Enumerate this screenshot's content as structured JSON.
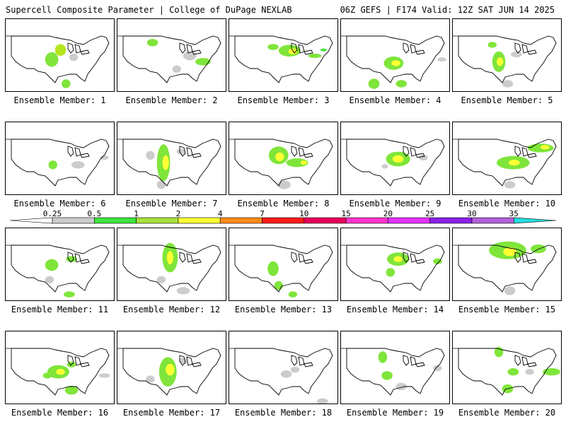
{
  "header": {
    "title": "Supercell Composite Parameter | College of DuPage NEXLAB",
    "run_info": "06Z GEFS | F174 Valid: 12Z SAT JUN 14 2025"
  },
  "panels": [
    {
      "label": "Ensemble Member: 1",
      "blobs": [
        [
          0.42,
          0.55,
          0.06,
          0.1,
          "#7fe53a"
        ],
        [
          0.5,
          0.42,
          0.05,
          0.08,
          "#b5e61d"
        ],
        [
          0.62,
          0.52,
          0.04,
          0.05,
          "#cccccc"
        ],
        [
          0.55,
          0.88,
          0.04,
          0.06,
          "#7fe53a"
        ]
      ]
    },
    {
      "label": "Ensemble Member: 2",
      "blobs": [
        [
          0.32,
          0.32,
          0.05,
          0.05,
          "#7fe53a"
        ],
        [
          0.66,
          0.5,
          0.06,
          0.06,
          "#cccccc"
        ],
        [
          0.78,
          0.58,
          0.07,
          0.05,
          "#7fe53a"
        ],
        [
          0.54,
          0.68,
          0.04,
          0.05,
          "#cccccc"
        ]
      ]
    },
    {
      "label": "Ensemble Member: 3",
      "blobs": [
        [
          0.55,
          0.43,
          0.1,
          0.08,
          "#7fe53a"
        ],
        [
          0.58,
          0.44,
          0.04,
          0.04,
          "#ffff33"
        ],
        [
          0.4,
          0.38,
          0.05,
          0.04,
          "#7fe53a"
        ],
        [
          0.78,
          0.5,
          0.06,
          0.03,
          "#7fe53a"
        ],
        [
          0.86,
          0.42,
          0.03,
          0.02,
          "#4fe040"
        ]
      ]
    },
    {
      "label": "Ensemble Member: 4",
      "blobs": [
        [
          0.48,
          0.6,
          0.09,
          0.09,
          "#7fe53a"
        ],
        [
          0.5,
          0.6,
          0.04,
          0.04,
          "#ffff33"
        ],
        [
          0.3,
          0.88,
          0.05,
          0.07,
          "#7fe53a"
        ],
        [
          0.55,
          0.88,
          0.05,
          0.05,
          "#7fe53a"
        ],
        [
          0.92,
          0.55,
          0.04,
          0.03,
          "#cccccc"
        ]
      ]
    },
    {
      "label": "Ensemble Member: 5",
      "blobs": [
        [
          0.42,
          0.58,
          0.06,
          0.14,
          "#7fe53a"
        ],
        [
          0.43,
          0.58,
          0.03,
          0.06,
          "#ffff33"
        ],
        [
          0.36,
          0.35,
          0.04,
          0.04,
          "#7fe53a"
        ],
        [
          0.58,
          0.48,
          0.05,
          0.04,
          "#cccccc"
        ],
        [
          0.5,
          0.88,
          0.05,
          0.05,
          "#cccccc"
        ]
      ]
    },
    {
      "label": "Ensemble Member: 6",
      "blobs": [
        [
          0.43,
          0.58,
          0.04,
          0.06,
          "#7fe53a"
        ],
        [
          0.66,
          0.58,
          0.06,
          0.05,
          "#cccccc"
        ],
        [
          0.9,
          0.48,
          0.04,
          0.03,
          "#cccccc"
        ]
      ]
    },
    {
      "label": "Ensemble Member: 7",
      "blobs": [
        [
          0.42,
          0.55,
          0.06,
          0.25,
          "#7fe53a"
        ],
        [
          0.44,
          0.55,
          0.03,
          0.1,
          "#ffff33"
        ],
        [
          0.3,
          0.45,
          0.04,
          0.06,
          "#cccccc"
        ],
        [
          0.58,
          0.4,
          0.04,
          0.04,
          "#cccccc"
        ],
        [
          0.4,
          0.85,
          0.04,
          0.06,
          "#cccccc"
        ]
      ]
    },
    {
      "label": "Ensemble Member: 8",
      "blobs": [
        [
          0.45,
          0.45,
          0.09,
          0.12,
          "#7fe53a"
        ],
        [
          0.46,
          0.47,
          0.04,
          0.06,
          "#ffff33"
        ],
        [
          0.62,
          0.55,
          0.1,
          0.06,
          "#7fe53a"
        ],
        [
          0.68,
          0.55,
          0.03,
          0.03,
          "#ffff33"
        ],
        [
          0.5,
          0.85,
          0.06,
          0.06,
          "#cccccc"
        ]
      ]
    },
    {
      "label": "Ensemble Member: 9",
      "blobs": [
        [
          0.52,
          0.5,
          0.11,
          0.1,
          "#7fe53a"
        ],
        [
          0.52,
          0.5,
          0.05,
          0.05,
          "#ffff33"
        ],
        [
          0.4,
          0.6,
          0.03,
          0.03,
          "#cccccc"
        ],
        [
          0.75,
          0.48,
          0.04,
          0.04,
          "#cccccc"
        ]
      ]
    },
    {
      "label": "Ensemble Member: 10",
      "blobs": [
        [
          0.55,
          0.55,
          0.15,
          0.09,
          "#7fe53a"
        ],
        [
          0.56,
          0.55,
          0.05,
          0.04,
          "#ffff33"
        ],
        [
          0.8,
          0.35,
          0.12,
          0.06,
          "#7fe53a"
        ],
        [
          0.84,
          0.34,
          0.04,
          0.03,
          "#ffff33"
        ],
        [
          0.52,
          0.85,
          0.05,
          0.05,
          "#cccccc"
        ]
      ]
    },
    {
      "label": "Ensemble Member: 11",
      "blobs": [
        [
          0.42,
          0.5,
          0.06,
          0.08,
          "#7fe53a"
        ],
        [
          0.6,
          0.42,
          0.05,
          0.04,
          "#7fe53a"
        ],
        [
          0.4,
          0.7,
          0.04,
          0.05,
          "#cccccc"
        ],
        [
          0.58,
          0.9,
          0.05,
          0.04,
          "#7fe53a"
        ]
      ]
    },
    {
      "label": "Ensemble Member: 12",
      "blobs": [
        [
          0.48,
          0.4,
          0.07,
          0.2,
          "#7fe53a"
        ],
        [
          0.48,
          0.4,
          0.03,
          0.09,
          "#ffff33"
        ],
        [
          0.4,
          0.7,
          0.04,
          0.05,
          "#cccccc"
        ],
        [
          0.6,
          0.85,
          0.06,
          0.05,
          "#cccccc"
        ]
      ]
    },
    {
      "label": "Ensemble Member: 13",
      "blobs": [
        [
          0.4,
          0.55,
          0.05,
          0.1,
          "#7fe53a"
        ],
        [
          0.45,
          0.78,
          0.04,
          0.06,
          "#7fe53a"
        ],
        [
          0.58,
          0.9,
          0.04,
          0.04,
          "#7fe53a"
        ]
      ]
    },
    {
      "label": "Ensemble Member: 14",
      "blobs": [
        [
          0.52,
          0.42,
          0.1,
          0.09,
          "#7fe53a"
        ],
        [
          0.52,
          0.42,
          0.04,
          0.04,
          "#ffff33"
        ],
        [
          0.45,
          0.6,
          0.04,
          0.06,
          "#7fe53a"
        ],
        [
          0.88,
          0.45,
          0.04,
          0.04,
          "#7fe53a"
        ]
      ]
    },
    {
      "label": "Ensemble Member: 15",
      "blobs": [
        [
          0.5,
          0.3,
          0.17,
          0.12,
          "#7fe53a"
        ],
        [
          0.52,
          0.32,
          0.06,
          0.06,
          "#ffff33"
        ],
        [
          0.78,
          0.28,
          0.07,
          0.06,
          "#7fe53a"
        ],
        [
          0.52,
          0.85,
          0.05,
          0.06,
          "#cccccc"
        ]
      ]
    },
    {
      "label": "Ensemble Member: 16",
      "blobs": [
        [
          0.48,
          0.55,
          0.1,
          0.09,
          "#7fe53a"
        ],
        [
          0.5,
          0.55,
          0.04,
          0.04,
          "#ffff33"
        ],
        [
          0.38,
          0.6,
          0.04,
          0.04,
          "#7fe53a"
        ],
        [
          0.6,
          0.45,
          0.04,
          0.04,
          "#7fe53a"
        ],
        [
          0.6,
          0.8,
          0.06,
          0.06,
          "#7fe53a"
        ],
        [
          0.9,
          0.6,
          0.05,
          0.03,
          "#cccccc"
        ]
      ]
    },
    {
      "label": "Ensemble Member: 17",
      "blobs": [
        [
          0.46,
          0.55,
          0.08,
          0.2,
          "#7fe53a"
        ],
        [
          0.48,
          0.52,
          0.04,
          0.08,
          "#ffff33"
        ],
        [
          0.3,
          0.65,
          0.04,
          0.05,
          "#cccccc"
        ],
        [
          0.6,
          0.4,
          0.04,
          0.04,
          "#cccccc"
        ]
      ]
    },
    {
      "label": "Ensemble Member: 18",
      "blobs": [
        [
          0.52,
          0.58,
          0.05,
          0.05,
          "#cccccc"
        ],
        [
          0.6,
          0.52,
          0.04,
          0.04,
          "#cccccc"
        ],
        [
          0.85,
          0.95,
          0.05,
          0.04,
          "#cccccc"
        ]
      ]
    },
    {
      "label": "Ensemble Member: 19",
      "blobs": [
        [
          0.38,
          0.35,
          0.04,
          0.08,
          "#7fe53a"
        ],
        [
          0.42,
          0.6,
          0.05,
          0.06,
          "#7fe53a"
        ],
        [
          0.55,
          0.75,
          0.05,
          0.05,
          "#cccccc"
        ],
        [
          0.88,
          0.5,
          0.04,
          0.04,
          "#cccccc"
        ]
      ]
    },
    {
      "label": "Ensemble Member: 20",
      "blobs": [
        [
          0.42,
          0.28,
          0.04,
          0.07,
          "#7fe53a"
        ],
        [
          0.55,
          0.55,
          0.05,
          0.05,
          "#7fe53a"
        ],
        [
          0.5,
          0.78,
          0.05,
          0.06,
          "#7fe53a"
        ],
        [
          0.9,
          0.55,
          0.08,
          0.05,
          "#7fe53a"
        ],
        [
          0.7,
          0.55,
          0.04,
          0.04,
          "#cccccc"
        ]
      ]
    }
  ],
  "colorbar": {
    "levels": [
      "0.25",
      "0.5",
      "1",
      "2",
      "4",
      "7",
      "10",
      "15",
      "20",
      "25",
      "30",
      "35"
    ],
    "colors": [
      "#cccccc",
      "#3ee53e",
      "#a8e23c",
      "#ffff33",
      "#ff8c1a",
      "#ff1a1a",
      "#e8005a",
      "#ff33cc",
      "#e233ff",
      "#8b1fe6",
      "#b25fd9",
      "#22e0e0"
    ],
    "below_color": "#ffffff",
    "above_color": "#22e0e0"
  },
  "map_colors": {
    "land": "#ffffff",
    "border": "#000000",
    "state": "#000000"
  }
}
